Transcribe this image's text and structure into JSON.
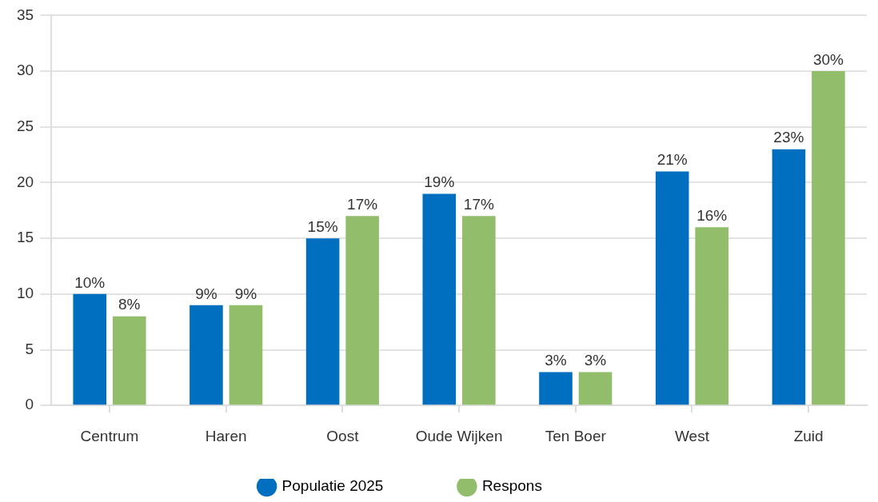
{
  "chart_data": {
    "type": "bar",
    "categories": [
      "Centrum",
      "Haren",
      "Oost",
      "Oude Wijken",
      "Ten Boer",
      "West",
      "Zuid"
    ],
    "series": [
      {
        "name": "Populatie 2025",
        "color": "#006fc0",
        "values": [
          10,
          9,
          15,
          19,
          3,
          21,
          23
        ],
        "value_labels": [
          "10%",
          "9%",
          "15%",
          "19%",
          "3%",
          "21%",
          "23%"
        ]
      },
      {
        "name": "Respons",
        "color": "#92be6c",
        "values": [
          8,
          9,
          17,
          17,
          3,
          16,
          30
        ],
        "value_labels": [
          "8%",
          "9%",
          "17%",
          "17%",
          "3%",
          "16%",
          "30%"
        ]
      }
    ],
    "ylim": [
      0,
      35
    ],
    "yticks": [
      0,
      5,
      10,
      15,
      20,
      25,
      30,
      35
    ],
    "grid": "y",
    "legend": "bottom"
  }
}
